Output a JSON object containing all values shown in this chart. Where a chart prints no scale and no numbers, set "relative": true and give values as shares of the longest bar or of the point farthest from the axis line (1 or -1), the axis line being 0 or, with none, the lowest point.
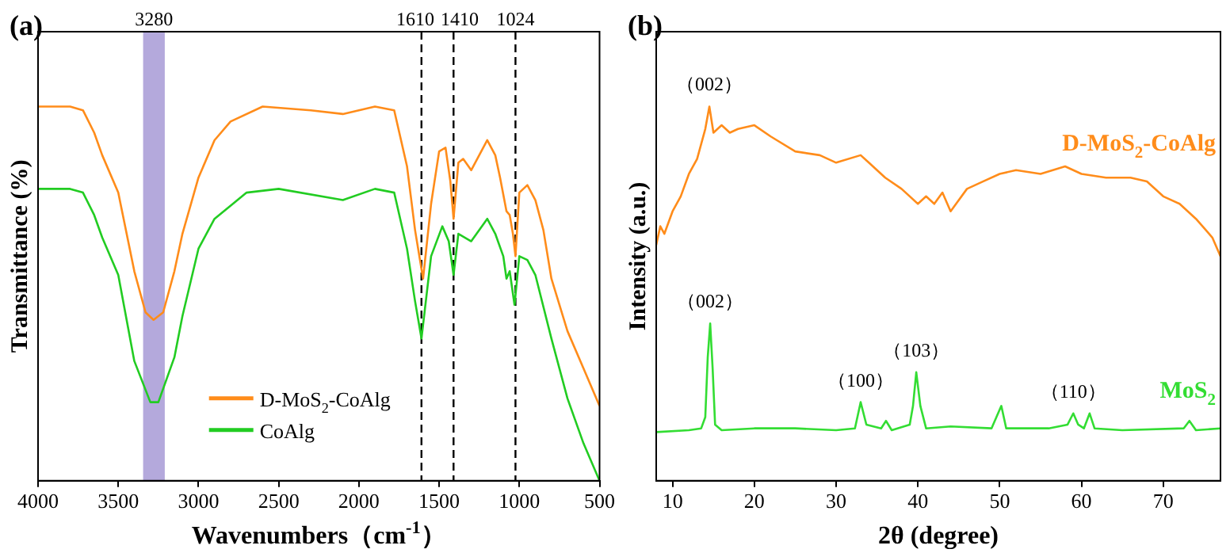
{
  "chart_data": [
    {
      "type": "line",
      "title": "(a)",
      "xlabel": "Wavenumbers（cm$^{-1}$）",
      "ylabel": "Transmittance (%)",
      "relative": true,
      "xlim": [
        4000,
        500
      ],
      "xticks": [
        4000,
        3500,
        3000,
        2500,
        2000,
        1500,
        1000,
        500
      ],
      "legend": "bottom",
      "ref_lines": [
        {
          "axis": "x",
          "value": 1610,
          "label": "1610",
          "color": "#000000",
          "line_style": "dashed"
        },
        {
          "axis": "x",
          "value": 1410,
          "label": "1410",
          "color": "#000000",
          "line_style": "dashed"
        },
        {
          "axis": "x",
          "value": 1024,
          "label": "1024",
          "color": "#000000",
          "line_style": "dashed"
        }
      ],
      "bands": [
        {
          "axis": "x",
          "from": 3345,
          "to": 3210,
          "label": "3280",
          "color": "#b4a9dc"
        }
      ],
      "series": [
        {
          "name": "D-MoS$_{2}$-CoAlg",
          "color": "#ff8c1a",
          "x": [
            4000,
            3800,
            3720,
            3650,
            3600,
            3500,
            3400,
            3330,
            3280,
            3220,
            3150,
            3100,
            3000,
            2900,
            2800,
            2600,
            2300,
            2100,
            1900,
            1780,
            1700,
            1650,
            1600,
            1550,
            1500,
            1460,
            1430,
            1410,
            1380,
            1350,
            1300,
            1250,
            1200,
            1150,
            1120,
            1080,
            1060,
            1040,
            1024,
            1000,
            950,
            900,
            850,
            800,
            700,
            600,
            500
          ],
          "values": [
            1.0,
            1.0,
            0.99,
            0.93,
            0.87,
            0.77,
            0.56,
            0.45,
            0.43,
            0.45,
            0.56,
            0.66,
            0.81,
            0.91,
            0.96,
            1.0,
            0.99,
            0.98,
            1.0,
            0.99,
            0.84,
            0.67,
            0.54,
            0.74,
            0.88,
            0.89,
            0.8,
            0.7,
            0.85,
            0.86,
            0.83,
            0.87,
            0.91,
            0.87,
            0.81,
            0.72,
            0.71,
            0.66,
            0.6,
            0.77,
            0.79,
            0.75,
            0.67,
            0.54,
            0.4,
            0.3,
            0.2
          ]
        },
        {
          "name": "CoAlg",
          "color": "#22cc22",
          "x": [
            4000,
            3800,
            3720,
            3650,
            3600,
            3500,
            3400,
            3300,
            3250,
            3150,
            3100,
            3000,
            2900,
            2700,
            2500,
            2100,
            1900,
            1780,
            1700,
            1650,
            1610,
            1550,
            1480,
            1440,
            1410,
            1380,
            1300,
            1200,
            1150,
            1100,
            1080,
            1060,
            1030,
            1000,
            950,
            900,
            800,
            700,
            600,
            500
          ],
          "values": [
            0.78,
            0.78,
            0.77,
            0.71,
            0.65,
            0.55,
            0.32,
            0.21,
            0.21,
            0.33,
            0.44,
            0.62,
            0.7,
            0.77,
            0.78,
            0.75,
            0.78,
            0.77,
            0.62,
            0.48,
            0.38,
            0.6,
            0.68,
            0.64,
            0.55,
            0.66,
            0.64,
            0.7,
            0.66,
            0.6,
            0.54,
            0.56,
            0.47,
            0.6,
            0.59,
            0.55,
            0.38,
            0.22,
            0.1,
            0.0
          ]
        }
      ]
    },
    {
      "type": "line",
      "title": "(b)",
      "xlabel": "2θ (degree)",
      "ylabel": "Intensity (a.u.)",
      "relative": true,
      "xlim": [
        8,
        77
      ],
      "xticks": [
        10,
        20,
        30,
        40,
        50,
        60,
        70
      ],
      "annotations": [
        {
          "text": "（002）",
          "x": 14.5,
          "y": 1.0
        },
        {
          "text": "（002）",
          "x": 14.6,
          "y": 0.42
        },
        {
          "text": "（100）",
          "x": 33,
          "y": 0.21
        },
        {
          "text": "（103）",
          "x": 39.8,
          "y": 0.29
        },
        {
          "text": "（110）",
          "x": 59,
          "y": 0.18
        }
      ],
      "series": [
        {
          "name": "D-MoS$_{2}$-CoAlg",
          "color": "#ff8c1a",
          "x": [
            8,
            8.5,
            9,
            10,
            11,
            12,
            13,
            14,
            14.5,
            15,
            16,
            17,
            18,
            20,
            22,
            25,
            28,
            30,
            33,
            34,
            36,
            38,
            40,
            41,
            42,
            43,
            44,
            46,
            48,
            50,
            52,
            55,
            58,
            60,
            63,
            66,
            68,
            70,
            72,
            74,
            76,
            77
          ],
          "values": [
            0.63,
            0.68,
            0.66,
            0.72,
            0.76,
            0.82,
            0.86,
            0.94,
            1.0,
            0.93,
            0.95,
            0.93,
            0.94,
            0.95,
            0.92,
            0.88,
            0.87,
            0.85,
            0.87,
            0.85,
            0.81,
            0.78,
            0.74,
            0.76,
            0.74,
            0.77,
            0.72,
            0.78,
            0.8,
            0.82,
            0.83,
            0.82,
            0.84,
            0.82,
            0.81,
            0.81,
            0.8,
            0.76,
            0.74,
            0.7,
            0.65,
            0.6
          ]
        },
        {
          "name": "MoS$_{2}$",
          "color": "#33dd33",
          "x": [
            8,
            12,
            13.5,
            14,
            14.3,
            14.6,
            14.9,
            15.2,
            16,
            20,
            25,
            30,
            32.3,
            33,
            33.7,
            35.5,
            36.1,
            36.8,
            39,
            39.4,
            39.8,
            40.3,
            41,
            44,
            49,
            49.6,
            50.2,
            50.8,
            56,
            58.3,
            59,
            59.6,
            60.3,
            61,
            61.6,
            65,
            72.5,
            73.2,
            74,
            77
          ],
          "values": [
            0.13,
            0.135,
            0.14,
            0.17,
            0.33,
            0.42,
            0.3,
            0.15,
            0.135,
            0.14,
            0.14,
            0.135,
            0.14,
            0.21,
            0.15,
            0.14,
            0.16,
            0.135,
            0.15,
            0.2,
            0.29,
            0.2,
            0.14,
            0.145,
            0.14,
            0.17,
            0.2,
            0.14,
            0.14,
            0.15,
            0.18,
            0.15,
            0.14,
            0.18,
            0.14,
            0.135,
            0.14,
            0.16,
            0.135,
            0.14
          ]
        }
      ]
    }
  ]
}
